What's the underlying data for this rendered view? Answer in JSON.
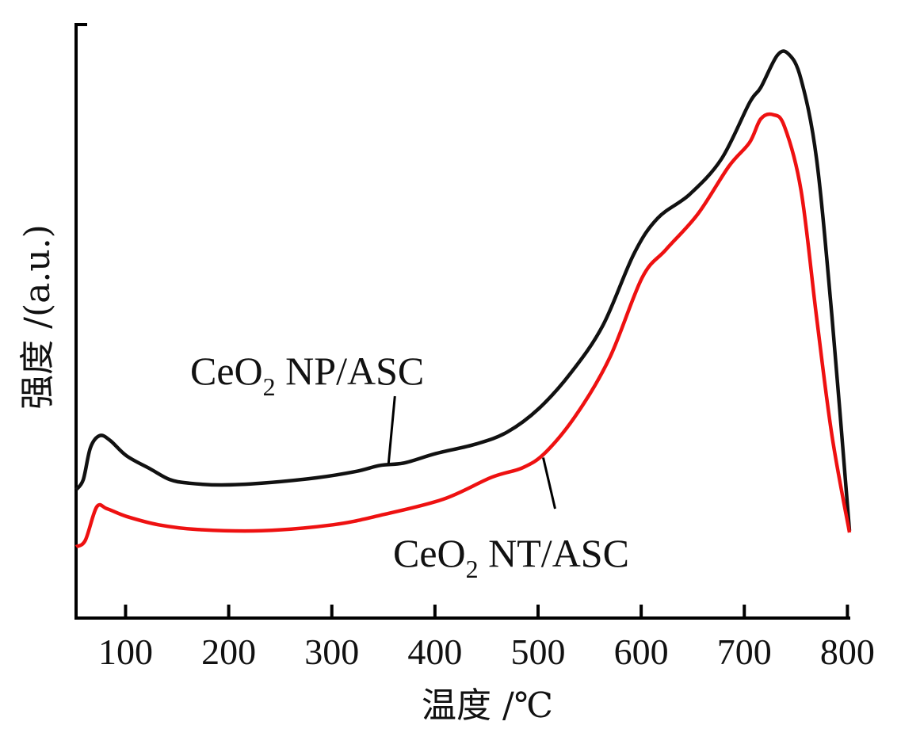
{
  "chart_data": {
    "type": "line",
    "title": "",
    "xlabel": "温度 /℃",
    "ylabel": "强度 /(a.u.)",
    "xlim": [
      52,
      802
    ],
    "ylim": [
      0,
      100
    ],
    "xticks": [
      100,
      200,
      300,
      400,
      500,
      600,
      700,
      800
    ],
    "xtick_labels": [
      "100",
      "200",
      "300",
      "400",
      "500",
      "600",
      "700",
      "800"
    ],
    "yticks": [],
    "grid": false,
    "legend": "none (inline annotations)",
    "series": [
      {
        "name": "CeO2 NP/ASC",
        "label_main": "CeO",
        "label_sub": "2",
        "label_rest": " NP/ASC",
        "color": "#111111",
        "x": [
          52,
          59,
          66,
          75,
          85,
          101,
          124,
          143,
          162,
          193,
          232,
          285,
          324,
          347,
          370,
          401,
          440,
          470,
          501,
          532,
          563,
          593,
          616,
          647,
          678,
          705,
          716,
          732,
          743,
          755,
          770,
          785,
          802
        ],
        "y": [
          21.6,
          23.3,
          28.7,
          30.7,
          29.9,
          27.3,
          25.1,
          23.3,
          22.7,
          22.4,
          22.7,
          23.6,
          24.7,
          25.7,
          26.1,
          27.7,
          29.3,
          31.3,
          35.3,
          41.3,
          49.3,
          61.3,
          67.3,
          71.3,
          77.3,
          86.7,
          89.3,
          94.7,
          94.9,
          90.7,
          77.3,
          50.7,
          14.7
        ],
        "annotation_point": [
          355,
          26.0
        ]
      },
      {
        "name": "CeO2 NT/ASC",
        "label_main": "CeO",
        "label_sub": "2",
        "label_rest": " NT/ASC",
        "color": "#ee1111",
        "x": [
          52,
          61,
          72,
          82,
          101,
          132,
          170,
          232,
          301,
          347,
          408,
          455,
          485,
          508,
          539,
          570,
          601,
          624,
          655,
          685,
          705,
          716,
          728,
          739,
          755,
          770,
          785,
          802
        ],
        "y": [
          12.0,
          13.1,
          18.7,
          18.4,
          17.1,
          15.7,
          14.9,
          14.7,
          15.7,
          17.3,
          20.0,
          23.7,
          25.3,
          28.0,
          34.7,
          44.0,
          57.3,
          62.0,
          68.0,
          76.0,
          80.0,
          84.0,
          84.7,
          82.7,
          72.0,
          50.7,
          30.7,
          14.4
        ],
        "annotation_point": [
          505,
          27.0
        ]
      }
    ]
  }
}
